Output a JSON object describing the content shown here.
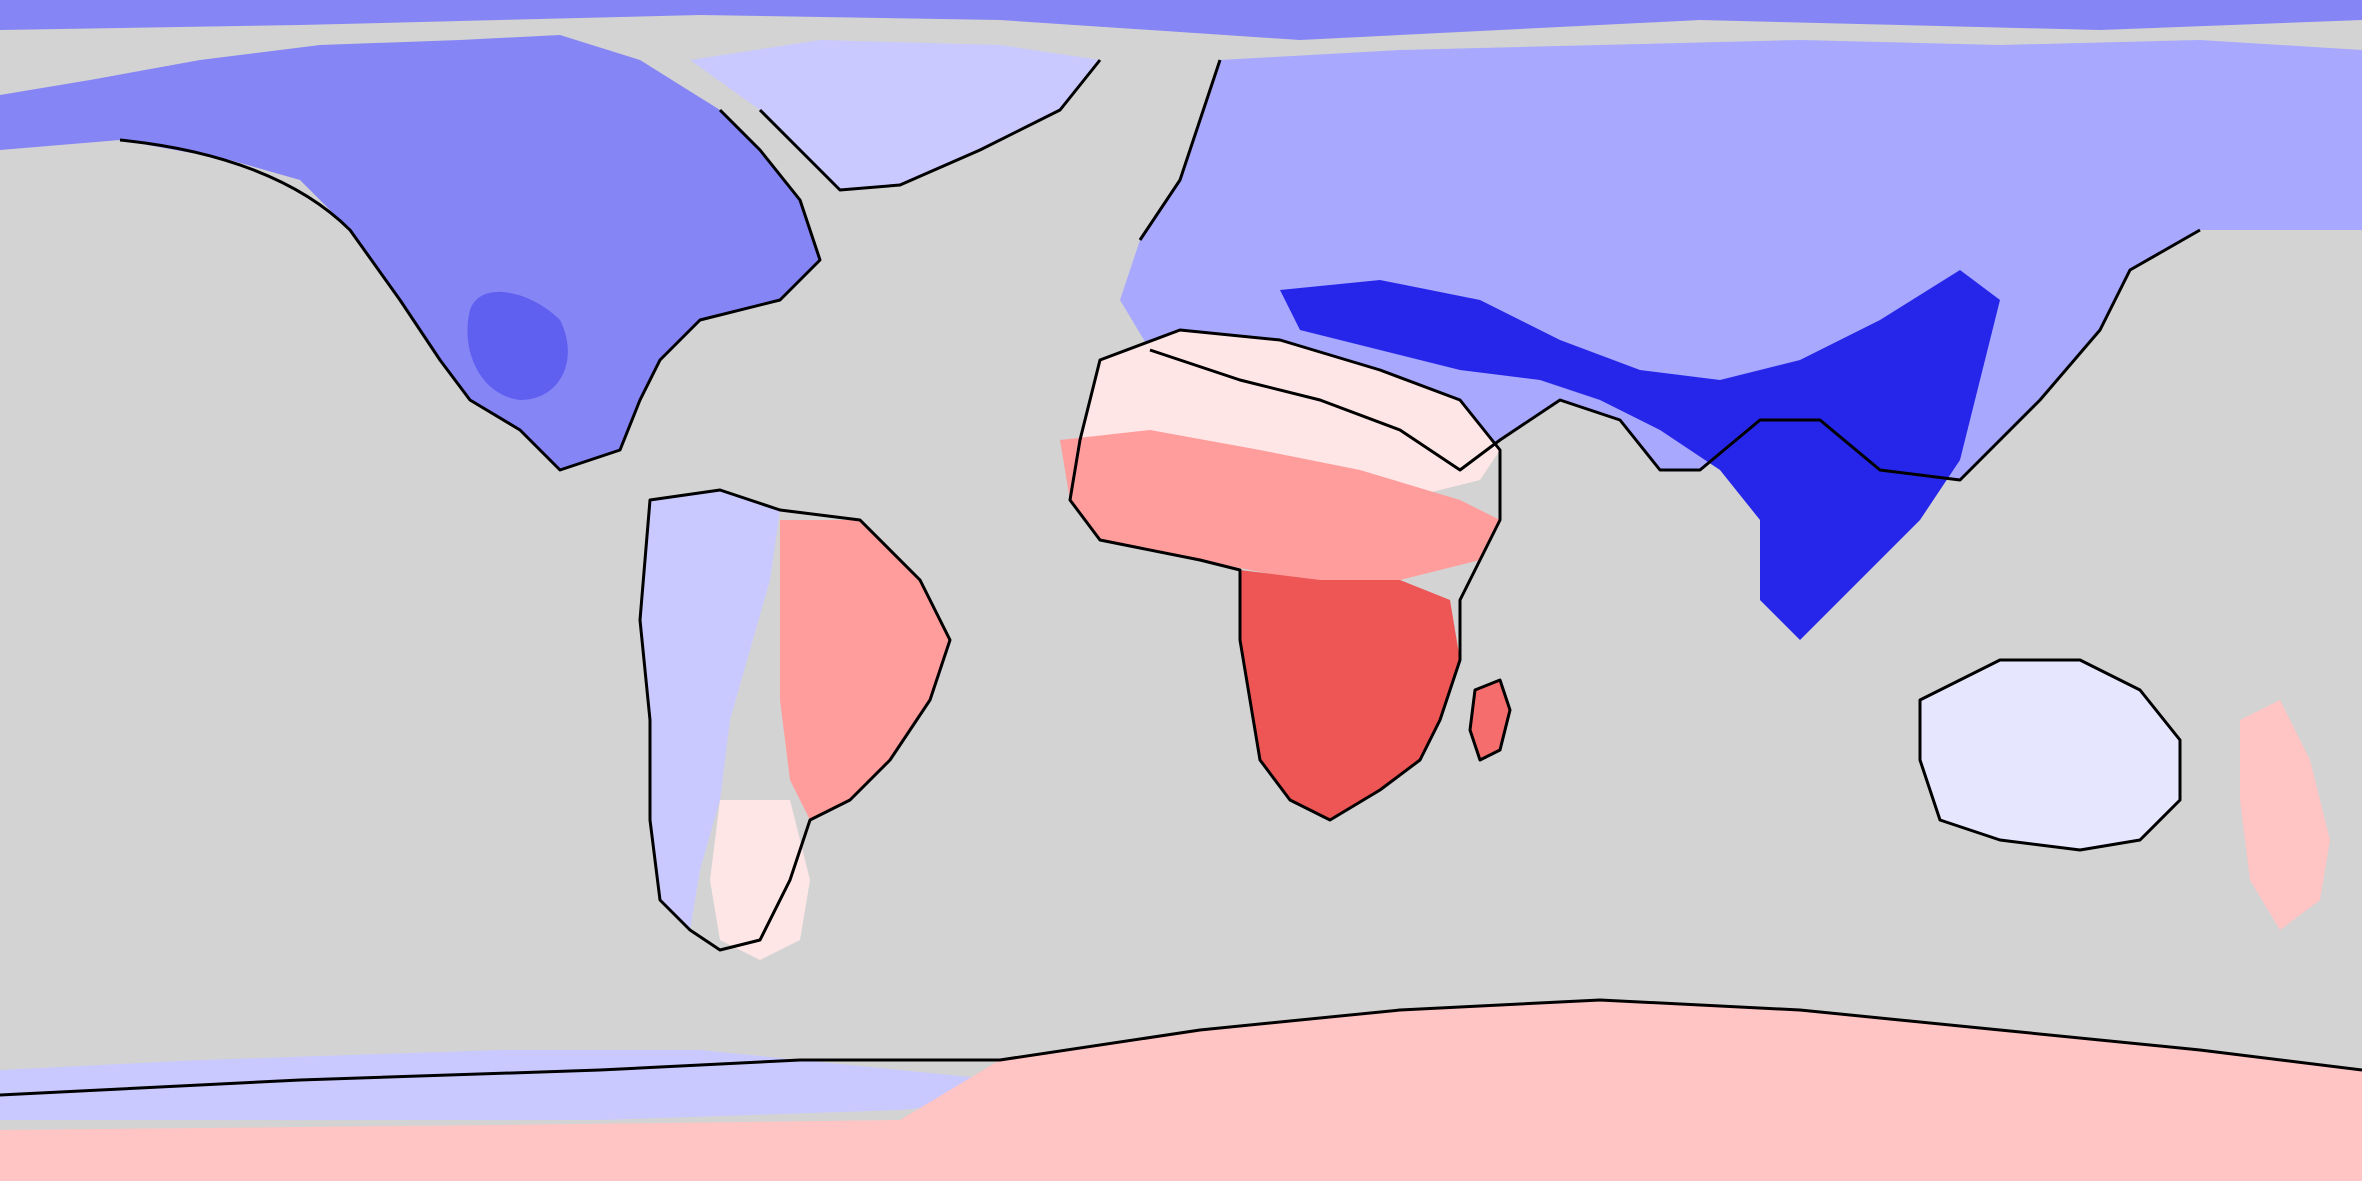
{
  "map": {
    "projection": "equirectangular",
    "ocean_mask_color": "#d3d3d3",
    "coastline_color": "#000000",
    "palette": {
      "blue_1": "#e6e6ff",
      "blue_2": "#c9c9ff",
      "blue_3": "#a8a8ff",
      "blue_4": "#8585f5",
      "blue_5": "#5f5ff0",
      "blue_6": "#2626ea",
      "red_1": "#ffe6e6",
      "red_2": "#ffc4c4",
      "red_3": "#ff9d9d",
      "red_4": "#f56d6d",
      "red_5": "#ee5555"
    },
    "regions": [
      {
        "name": "arctic-fringe",
        "tone": "blue_4"
      },
      {
        "name": "north-america",
        "tone": "blue_4"
      },
      {
        "name": "central-us",
        "tone": "blue_5"
      },
      {
        "name": "greenland",
        "tone": "blue_2"
      },
      {
        "name": "eurasia",
        "tone": "blue_3"
      },
      {
        "name": "himalaya-southeast-asia",
        "tone": "blue_6"
      },
      {
        "name": "north-africa",
        "tone": "red_1"
      },
      {
        "name": "sahel",
        "tone": "red_3"
      },
      {
        "name": "southern-africa",
        "tone": "red_5"
      },
      {
        "name": "madagascar",
        "tone": "red_4"
      },
      {
        "name": "andes",
        "tone": "blue_2"
      },
      {
        "name": "eastern-brazil",
        "tone": "red_3"
      },
      {
        "name": "patagonia",
        "tone": "red_1"
      },
      {
        "name": "australia",
        "tone": "blue_1"
      },
      {
        "name": "new-zealand",
        "tone": "red_2"
      },
      {
        "name": "west-antarctica",
        "tone": "blue_2"
      },
      {
        "name": "east-antarctica",
        "tone": "red_2"
      }
    ]
  }
}
